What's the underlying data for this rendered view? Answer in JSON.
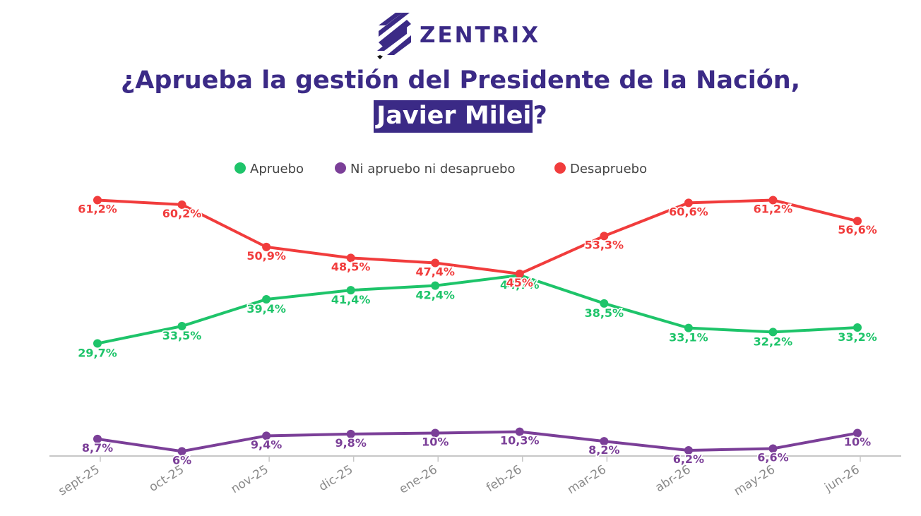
{
  "brand": {
    "name": "ZENTRIX"
  },
  "title": {
    "line1": "¿Aprueba la gestión del Presidente de la Nación,",
    "highlight": "Javier Milei",
    "suffix": "?"
  },
  "colors": {
    "brand": "#3b2a86",
    "apruebo": "#1ec46a",
    "ni": "#7b3f98",
    "desapruebo": "#f13c3c",
    "axis": "#c7c7c7",
    "tick": "#8a8a8a"
  },
  "chart_data": {
    "type": "line",
    "title": "¿Aprueba la gestión del Presidente de la Nación, Javier Milei?",
    "categories": [
      "sept-25",
      "oct-25",
      "nov-25",
      "dic-25",
      "ene-26",
      "feb-26",
      "mar-26",
      "abr-26",
      "may-26",
      "jun-26"
    ],
    "series": [
      {
        "name": "Apruebo",
        "values": [
          29.7,
          33.5,
          39.4,
          41.4,
          42.4,
          44.7,
          38.5,
          33.1,
          32.2,
          33.2
        ],
        "labels": [
          "29,7%",
          "33,5%",
          "39,4%",
          "41,4%",
          "42,4%",
          "44,7%",
          "38,5%",
          "33,1%",
          "32,2%",
          "33,2%"
        ]
      },
      {
        "name": "Ni apruebo ni desapruebo",
        "values": [
          8.7,
          6,
          9.4,
          9.8,
          10,
          10.3,
          8.2,
          6.2,
          6.6,
          10
        ],
        "labels": [
          "8,7%",
          "6%",
          "9,4%",
          "9,8%",
          "10%",
          "10,3%",
          "8,2%",
          "6,2%",
          "6,6%",
          "10%"
        ]
      },
      {
        "name": "Desapruebo",
        "values": [
          61.2,
          60.2,
          50.9,
          48.5,
          47.4,
          45,
          53.3,
          60.6,
          61.2,
          56.6
        ],
        "labels": [
          "61,2%",
          "60,2%",
          "50,9%",
          "48,5%",
          "47,4%",
          "45%",
          "53,3%",
          "60,6%",
          "61,2%",
          "56,6%"
        ]
      }
    ],
    "legend": "top-center",
    "grid": false,
    "ylim": [
      0,
      65
    ]
  }
}
